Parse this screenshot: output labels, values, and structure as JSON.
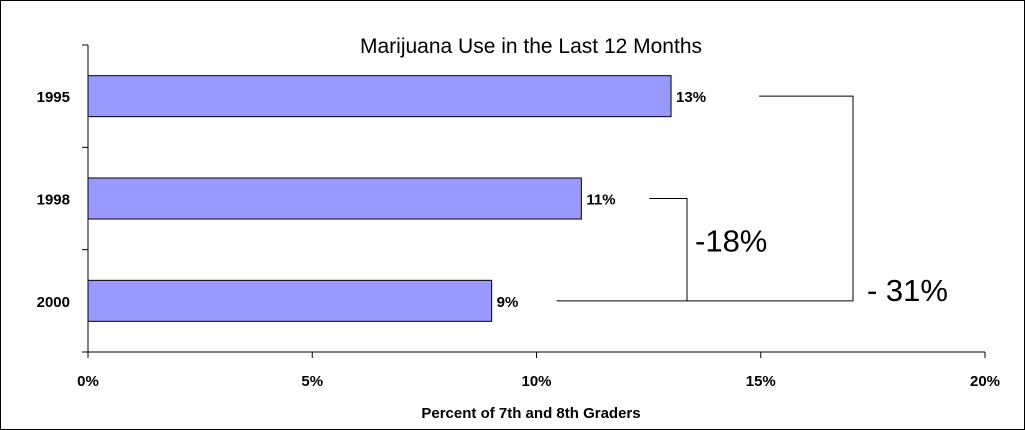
{
  "chart_data": {
    "type": "bar",
    "orientation": "horizontal",
    "title": "Marijuana Use in the Last 12 Months",
    "xlabel": "Percent of 7th and 8th Graders",
    "ylabel": "",
    "categories": [
      "1995",
      "1998",
      "2000"
    ],
    "values": [
      13,
      11,
      9
    ],
    "data_labels": [
      "13%",
      "11%",
      "9%"
    ],
    "xlim": [
      0,
      20
    ],
    "xticks": [
      0,
      5,
      10,
      15,
      20
    ],
    "xtick_labels": [
      "0%",
      "5%",
      "10%",
      "15%",
      "20%"
    ],
    "bar_color": "#9999ff",
    "grid": false,
    "annotations": [
      {
        "label": "-18%",
        "from": "1998",
        "to": "2000"
      },
      {
        "label": "- 31%",
        "from": "1995",
        "to": "2000"
      }
    ]
  }
}
